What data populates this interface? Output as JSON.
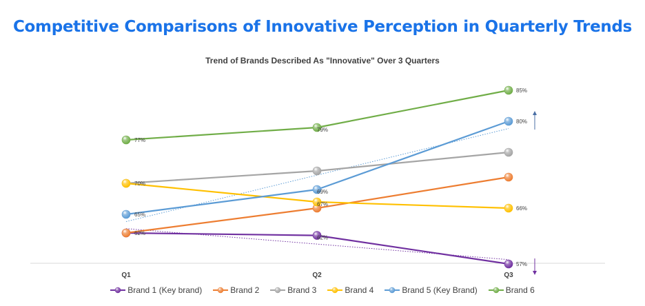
{
  "title": "Competitive Comparisons of Innovative Perception in Quarterly Trends",
  "chart_data": {
    "type": "line",
    "subtitle": "Trend of Brands Described As \"Innovative\" Over 3 Quarters",
    "categories": [
      "Q1",
      "Q2",
      "Q3"
    ],
    "ylim": [
      50,
      90
    ],
    "grid": false,
    "legend_position": "bottom",
    "series": [
      {
        "name": "Brand 1 (Key brand)",
        "color": "#7030a0",
        "values": [
          62,
          61.6,
          57
        ],
        "labels": [
          "62%",
          "62%",
          "57%"
        ],
        "trendline": true,
        "trend_arrow": "down"
      },
      {
        "name": "Brand 2",
        "color": "#ed7d31",
        "values": [
          62,
          66,
          71
        ],
        "labels": [
          "",
          "",
          ""
        ]
      },
      {
        "name": "Brand 3",
        "color": "#a5a5a5",
        "values": [
          70,
          72,
          75
        ],
        "labels": [
          "",
          "",
          ""
        ]
      },
      {
        "name": "Brand 4",
        "color": "#ffc000",
        "values": [
          70,
          67,
          66
        ],
        "labels": [
          "70%",
          "67%",
          "66%"
        ]
      },
      {
        "name": "Brand 5 (Key Brand)",
        "color": "#5b9bd5",
        "values": [
          65,
          69,
          80
        ],
        "labels": [
          "65%",
          "69%",
          "80%"
        ],
        "trendline": true,
        "trend_arrow": "up"
      },
      {
        "name": "Brand 6",
        "color": "#70ad47",
        "values": [
          77,
          79,
          85
        ],
        "labels": [
          "77%",
          "79%",
          "85%"
        ]
      }
    ]
  }
}
